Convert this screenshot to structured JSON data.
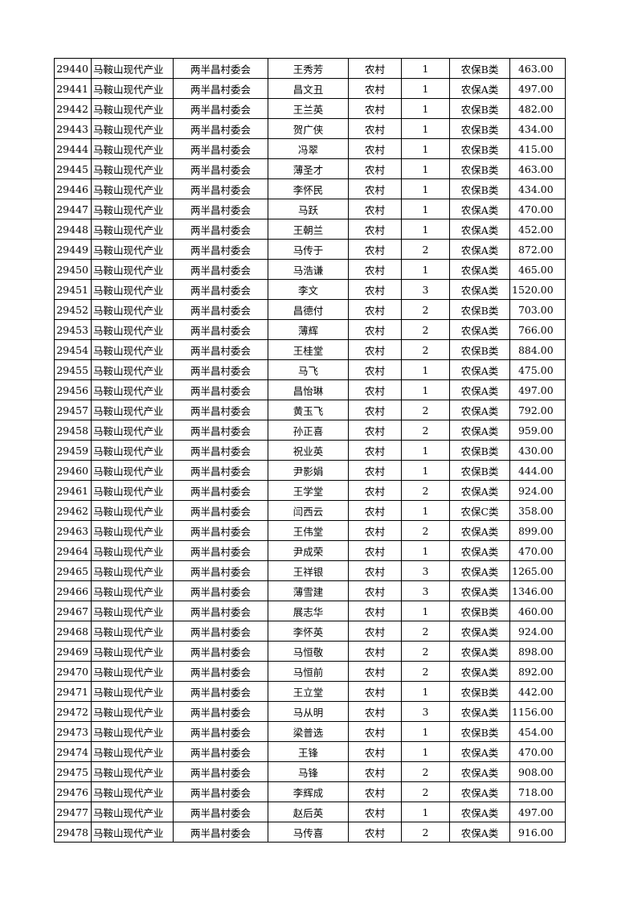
{
  "table": {
    "rows": [
      [
        "29440",
        "马鞍山现代产业",
        "两半昌村委会",
        "王秀芳",
        "农村",
        "1",
        "农保B类",
        "463.00"
      ],
      [
        "29441",
        "马鞍山现代产业",
        "两半昌村委会",
        "昌文丑",
        "农村",
        "1",
        "农保A类",
        "497.00"
      ],
      [
        "29442",
        "马鞍山现代产业",
        "两半昌村委会",
        "王兰英",
        "农村",
        "1",
        "农保B类",
        "482.00"
      ],
      [
        "29443",
        "马鞍山现代产业",
        "两半昌村委会",
        "贺广侠",
        "农村",
        "1",
        "农保B类",
        "434.00"
      ],
      [
        "29444",
        "马鞍山现代产业",
        "两半昌村委会",
        "冯翠",
        "农村",
        "1",
        "农保B类",
        "415.00"
      ],
      [
        "29445",
        "马鞍山现代产业",
        "两半昌村委会",
        "薄圣才",
        "农村",
        "1",
        "农保B类",
        "463.00"
      ],
      [
        "29446",
        "马鞍山现代产业",
        "两半昌村委会",
        "李怀民",
        "农村",
        "1",
        "农保B类",
        "434.00"
      ],
      [
        "29447",
        "马鞍山现代产业",
        "两半昌村委会",
        "马跃",
        "农村",
        "1",
        "农保A类",
        "470.00"
      ],
      [
        "29448",
        "马鞍山现代产业",
        "两半昌村委会",
        "王朝兰",
        "农村",
        "1",
        "农保A类",
        "452.00"
      ],
      [
        "29449",
        "马鞍山现代产业",
        "两半昌村委会",
        "马传于",
        "农村",
        "2",
        "农保A类",
        "872.00"
      ],
      [
        "29450",
        "马鞍山现代产业",
        "两半昌村委会",
        "马浩谦",
        "农村",
        "1",
        "农保A类",
        "465.00"
      ],
      [
        "29451",
        "马鞍山现代产业",
        "两半昌村委会",
        "李文",
        "农村",
        "3",
        "农保A类",
        "1520.00"
      ],
      [
        "29452",
        "马鞍山现代产业",
        "两半昌村委会",
        "昌德付",
        "农村",
        "2",
        "农保B类",
        "703.00"
      ],
      [
        "29453",
        "马鞍山现代产业",
        "两半昌村委会",
        "薄辉",
        "农村",
        "2",
        "农保A类",
        "766.00"
      ],
      [
        "29454",
        "马鞍山现代产业",
        "两半昌村委会",
        "王桂堂",
        "农村",
        "2",
        "农保B类",
        "884.00"
      ],
      [
        "29455",
        "马鞍山现代产业",
        "两半昌村委会",
        "马飞",
        "农村",
        "1",
        "农保A类",
        "475.00"
      ],
      [
        "29456",
        "马鞍山现代产业",
        "两半昌村委会",
        "昌怡琳",
        "农村",
        "1",
        "农保A类",
        "497.00"
      ],
      [
        "29457",
        "马鞍山现代产业",
        "两半昌村委会",
        "黄玉飞",
        "农村",
        "2",
        "农保A类",
        "792.00"
      ],
      [
        "29458",
        "马鞍山现代产业",
        "两半昌村委会",
        "孙正喜",
        "农村",
        "2",
        "农保A类",
        "959.00"
      ],
      [
        "29459",
        "马鞍山现代产业",
        "两半昌村委会",
        "祝业英",
        "农村",
        "1",
        "农保B类",
        "430.00"
      ],
      [
        "29460",
        "马鞍山现代产业",
        "两半昌村委会",
        "尹影娟",
        "农村",
        "1",
        "农保B类",
        "444.00"
      ],
      [
        "29461",
        "马鞍山现代产业",
        "两半昌村委会",
        "王学堂",
        "农村",
        "2",
        "农保A类",
        "924.00"
      ],
      [
        "29462",
        "马鞍山现代产业",
        "两半昌村委会",
        "闫西云",
        "农村",
        "1",
        "农保C类",
        "358.00"
      ],
      [
        "29463",
        "马鞍山现代产业",
        "两半昌村委会",
        "王伟堂",
        "农村",
        "2",
        "农保A类",
        "899.00"
      ],
      [
        "29464",
        "马鞍山现代产业",
        "两半昌村委会",
        "尹成荣",
        "农村",
        "1",
        "农保A类",
        "470.00"
      ],
      [
        "29465",
        "马鞍山现代产业",
        "两半昌村委会",
        "王祥银",
        "农村",
        "3",
        "农保A类",
        "1265.00"
      ],
      [
        "29466",
        "马鞍山现代产业",
        "两半昌村委会",
        "薄雪建",
        "农村",
        "3",
        "农保A类",
        "1346.00"
      ],
      [
        "29467",
        "马鞍山现代产业",
        "两半昌村委会",
        "展志华",
        "农村",
        "1",
        "农保B类",
        "460.00"
      ],
      [
        "29468",
        "马鞍山现代产业",
        "两半昌村委会",
        "李怀英",
        "农村",
        "2",
        "农保A类",
        "924.00"
      ],
      [
        "29469",
        "马鞍山现代产业",
        "两半昌村委会",
        "马恒敬",
        "农村",
        "2",
        "农保A类",
        "898.00"
      ],
      [
        "29470",
        "马鞍山现代产业",
        "两半昌村委会",
        "马恒前",
        "农村",
        "2",
        "农保A类",
        "892.00"
      ],
      [
        "29471",
        "马鞍山现代产业",
        "两半昌村委会",
        "王立堂",
        "农村",
        "1",
        "农保B类",
        "442.00"
      ],
      [
        "29472",
        "马鞍山现代产业",
        "两半昌村委会",
        "马从明",
        "农村",
        "3",
        "农保A类",
        "1156.00"
      ],
      [
        "29473",
        "马鞍山现代产业",
        "两半昌村委会",
        "梁普选",
        "农村",
        "1",
        "农保B类",
        "454.00"
      ],
      [
        "29474",
        "马鞍山现代产业",
        "两半昌村委会",
        "王锋",
        "农村",
        "1",
        "农保A类",
        "470.00"
      ],
      [
        "29475",
        "马鞍山现代产业",
        "两半昌村委会",
        "马锋",
        "农村",
        "2",
        "农保A类",
        "908.00"
      ],
      [
        "29476",
        "马鞍山现代产业",
        "两半昌村委会",
        "李辉成",
        "农村",
        "2",
        "农保A类",
        "718.00"
      ],
      [
        "29477",
        "马鞍山现代产业",
        "两半昌村委会",
        "赵后英",
        "农村",
        "1",
        "农保A类",
        "497.00"
      ],
      [
        "29478",
        "马鞍山现代产业",
        "两半昌村委会",
        "马传喜",
        "农村",
        "2",
        "农保A类",
        "916.00"
      ]
    ]
  }
}
